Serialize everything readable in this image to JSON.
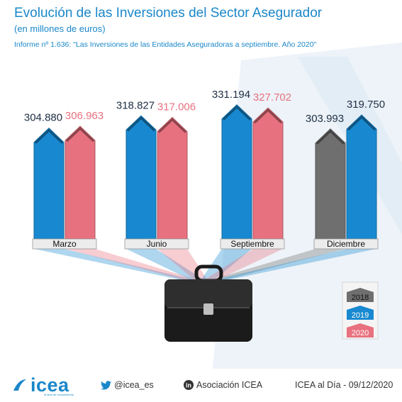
{
  "header": {
    "title": "Evolución de las Inversiones del Sector Asegurador",
    "subtitle": "(en millones de euros)",
    "report": "Informe nº 1.636: \"Las Inversiones de las Entidades Aseguradoras a septiembre. Año 2020\""
  },
  "colors": {
    "2018": "#6f6f6f",
    "2019": "#1889d0",
    "2020": "#e8717f",
    "title": "#1a87c9"
  },
  "chart_data": {
    "type": "bar",
    "categories": [
      "Marzo",
      "Junio",
      "Septiembre",
      "Diciembre"
    ],
    "groups": [
      {
        "category": "Marzo",
        "bars": [
          {
            "series": "2019",
            "value": 304.88,
            "label": "304.880"
          },
          {
            "series": "2020",
            "value": 306.963,
            "label": "306.963"
          }
        ]
      },
      {
        "category": "Junio",
        "bars": [
          {
            "series": "2019",
            "value": 318.827,
            "label": "318.827"
          },
          {
            "series": "2020",
            "value": 317.006,
            "label": "317.006"
          }
        ]
      },
      {
        "category": "Septiembre",
        "bars": [
          {
            "series": "2019",
            "value": 331.194,
            "label": "331.194"
          },
          {
            "series": "2020",
            "value": 327.702,
            "label": "327.702"
          }
        ]
      },
      {
        "category": "Diciembre",
        "bars": [
          {
            "series": "2018",
            "value": 303.993,
            "label": "303.993"
          },
          {
            "series": "2019",
            "value": 319.75,
            "label": "319.750"
          }
        ]
      }
    ],
    "series": [
      {
        "name": "2018",
        "color": "#6f6f6f"
      },
      {
        "name": "2019",
        "color": "#1889d0"
      },
      {
        "name": "2020",
        "color": "#e8717f"
      }
    ],
    "legend": [
      "2018",
      "2019",
      "2020"
    ],
    "legend_position": "bottom-right",
    "grid": false
  },
  "footer": {
    "logo": "icea",
    "logo_tagline": "al lado de conocimiento",
    "twitter": "@icea_es",
    "linkedin": "Asociación ICEA",
    "date": "ICEA al Día - 09/12/2020"
  }
}
